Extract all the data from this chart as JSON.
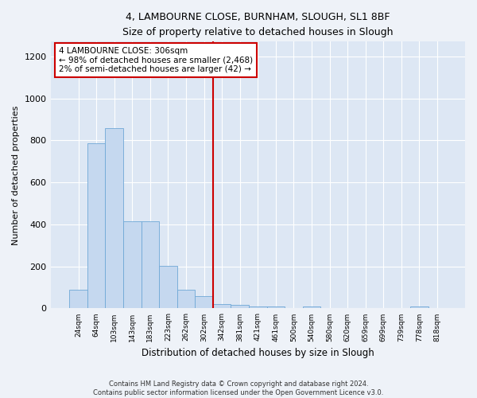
{
  "title": "4, LAMBOURNE CLOSE, BURNHAM, SLOUGH, SL1 8BF",
  "subtitle": "Size of property relative to detached houses in Slough",
  "xlabel": "Distribution of detached houses by size in Slough",
  "ylabel": "Number of detached properties",
  "bar_labels": [
    "24sqm",
    "64sqm",
    "103sqm",
    "143sqm",
    "183sqm",
    "223sqm",
    "262sqm",
    "302sqm",
    "342sqm",
    "381sqm",
    "421sqm",
    "461sqm",
    "500sqm",
    "540sqm",
    "580sqm",
    "620sqm",
    "659sqm",
    "699sqm",
    "739sqm",
    "778sqm",
    "818sqm"
  ],
  "bar_values": [
    90,
    785,
    858,
    413,
    413,
    204,
    90,
    57,
    20,
    18,
    10,
    10,
    0,
    8,
    0,
    0,
    0,
    0,
    0,
    10,
    0
  ],
  "bar_color": "#c5d8ef",
  "bar_edge_color": "#6fa8d6",
  "vline_index": 7,
  "property_line_label": "4 LAMBOURNE CLOSE: 306sqm",
  "annotation_line1": "← 98% of detached houses are smaller (2,468)",
  "annotation_line2": "2% of semi-detached houses are larger (42) →",
  "annotation_box_color": "#ffffff",
  "annotation_box_edge": "#cc0000",
  "vline_color": "#cc0000",
  "ylim": [
    0,
    1270
  ],
  "yticks": [
    0,
    200,
    400,
    600,
    800,
    1000,
    1200
  ],
  "fig_bg_color": "#eef2f8",
  "ax_bg_color": "#dde7f4",
  "footer_line1": "Contains HM Land Registry data © Crown copyright and database right 2024.",
  "footer_line2": "Contains public sector information licensed under the Open Government Licence v3.0."
}
